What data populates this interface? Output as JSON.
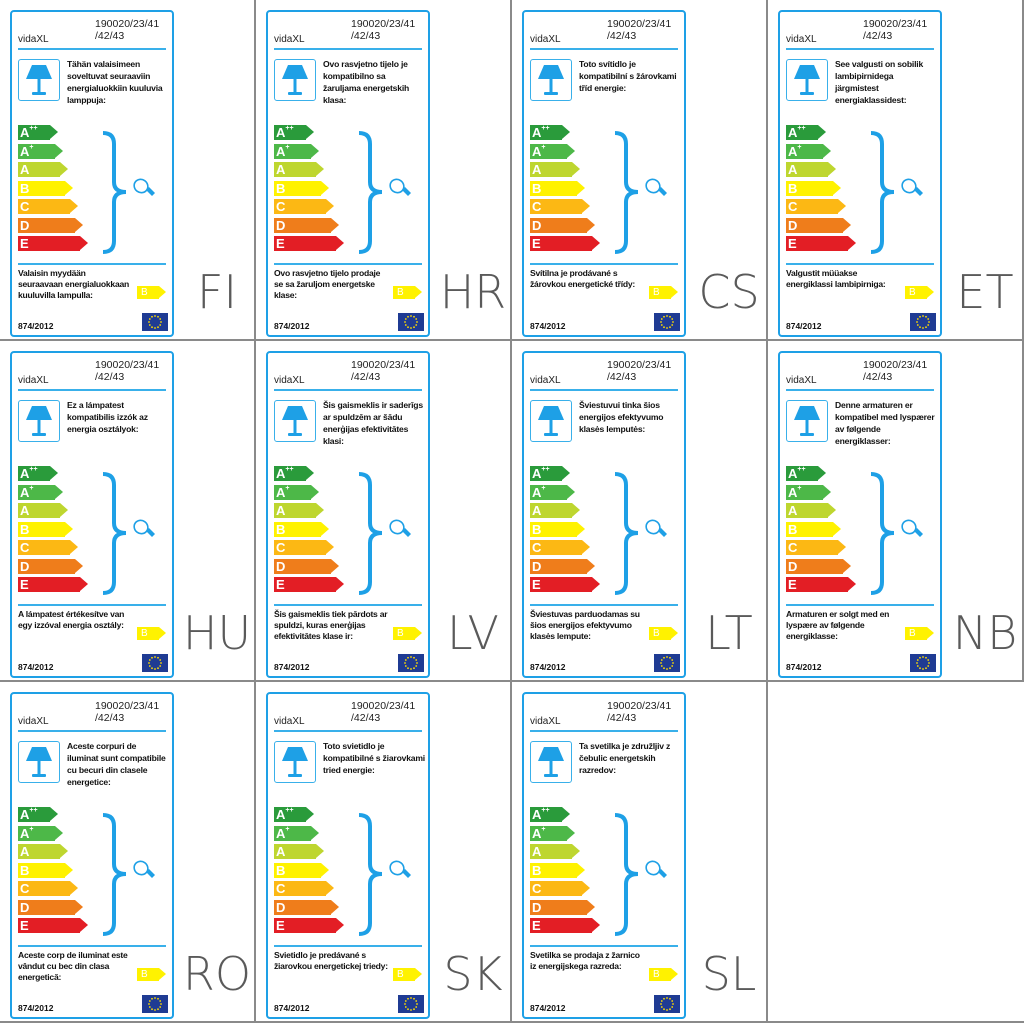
{
  "brand": "vidaXL",
  "model": [
    "190020/23/41",
    "/42/43"
  ],
  "regulation": "874/2012",
  "lamp_class": "B",
  "energy_classes": [
    {
      "letter": "A",
      "sup": "++",
      "color": "#2a9b3b"
    },
    {
      "letter": "A",
      "sup": "+",
      "color": "#4db848"
    },
    {
      "letter": "A",
      "sup": "",
      "color": "#bed62f"
    },
    {
      "letter": "B",
      "sup": "",
      "color": "#fff200"
    },
    {
      "letter": "C",
      "sup": "",
      "color": "#fcb814"
    },
    {
      "letter": "D",
      "sup": "",
      "color": "#ef7d1b"
    },
    {
      "letter": "E",
      "sup": "",
      "color": "#e31e25"
    }
  ],
  "accent_color": "#1ea0e6",
  "labels": [
    {
      "code": "FI",
      "intro": "Tähän valaisimeen soveltuvat seuraaviin energialuokkiin kuuluvia lamppuja:",
      "sold": "Valaisin myydään seuraavaan energialuokkaan kuuluvilla lampulla:"
    },
    {
      "code": "HR",
      "intro": "Ovo rasvjetno tijelo je kompatibilno sa žaruljama energetskih klasa:",
      "sold": "Ovo rasvjetno tijelo prodaje se sa žaruljom energetske klase:"
    },
    {
      "code": "CS",
      "intro": "Toto svítidlo je kompatibilní s žárovkami tříd energie:",
      "sold": "Svítilna je prodávané s žárovkou energetické třídy:"
    },
    {
      "code": "ET",
      "intro": "See valgusti on sobilik lambipirnidega järgmistest energiaklassidest:",
      "sold": "Valgustit müüakse energiklassi lambipirniga:"
    },
    {
      "code": "HU",
      "intro": "Ez a lámpatest kompatibilis izzók az energia osztályok:",
      "sold": "A lámpatest értékesítve van egy izzóval energia osztály:"
    },
    {
      "code": "LV",
      "intro": "Šis gaismeklis ir saderīgs ar spuldzēm ar šādu enerģijas efektivitātes klasi:",
      "sold": "Šis gaismeklis tiek pārdots ar spuldzi, kuras enerģijas efektivitātes klase ir:"
    },
    {
      "code": "LT",
      "intro": "Šviestuvui tinka šios energijos efektyvumo klasės lemputės:",
      "sold": "Šviestuvas parduodamas su šios energijos efektyvumo klasės lempute:"
    },
    {
      "code": "NB",
      "intro": "Denne armaturen er kompatibel med lyspærer av følgende energiklasser:",
      "sold": "Armaturen er solgt med en lyspære av følgende energiklasse:"
    },
    {
      "code": "RO",
      "intro": "Aceste corpuri de iluminat sunt compatibile cu becuri din clasele energetice:",
      "sold": "Aceste corp de iluminat este vândut cu bec din clasa energetică:"
    },
    {
      "code": "SK",
      "intro": "Toto svietidlo je kompatibilné s žiarovkami tried energie:",
      "sold": "Svietidlo je predávané s žiarovkou energetickej triedy:"
    },
    {
      "code": "SL",
      "intro": "Ta svetilka je združljiv z čebulic energetskih razredov:",
      "sold": "Svetilka se prodaja z žarnico iz energijskega razreda:"
    }
  ]
}
